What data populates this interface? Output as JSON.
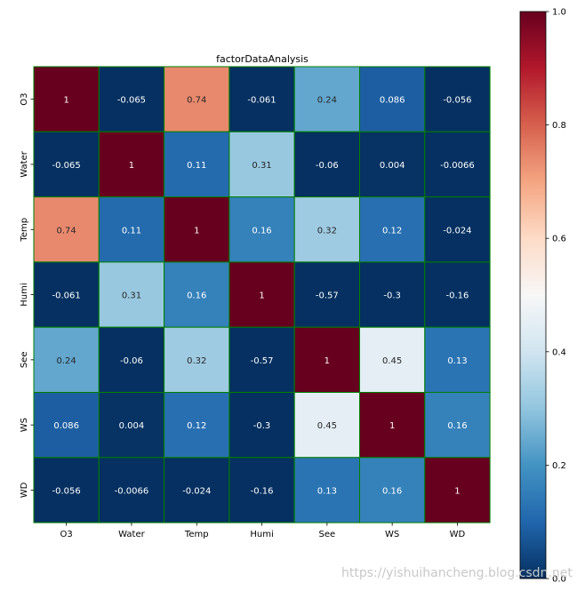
{
  "chart_data": {
    "type": "heatmap",
    "title": "factorDataAnalysis",
    "xlabel": "",
    "ylabel": "",
    "row_labels": [
      "O3",
      "Water",
      "Temp",
      "Humi",
      "See",
      "WS",
      "WD"
    ],
    "col_labels": [
      "O3",
      "Water",
      "Temp",
      "Humi",
      "See",
      "WS",
      "WD"
    ],
    "values": [
      [
        1,
        -0.065,
        0.74,
        -0.061,
        0.24,
        0.086,
        -0.056
      ],
      [
        -0.065,
        1,
        0.11,
        0.31,
        -0.06,
        0.004,
        -0.0066
      ],
      [
        0.74,
        0.11,
        1,
        0.16,
        0.32,
        0.12,
        -0.024
      ],
      [
        -0.061,
        0.31,
        0.16,
        1,
        -0.57,
        -0.3,
        -0.16
      ],
      [
        0.24,
        -0.06,
        0.32,
        -0.57,
        1,
        0.45,
        0.13
      ],
      [
        0.086,
        0.004,
        0.12,
        -0.3,
        0.45,
        1,
        0.16
      ],
      [
        -0.056,
        -0.0066,
        -0.024,
        -0.16,
        0.13,
        0.16,
        1
      ]
    ],
    "annotations": [
      [
        "1",
        "-0.065",
        "0.74",
        "-0.061",
        "0.24",
        "0.086",
        "-0.056"
      ],
      [
        "-0.065",
        "1",
        "0.11",
        "0.31",
        "-0.06",
        "0.004",
        "-0.0066"
      ],
      [
        "0.74",
        "0.11",
        "1",
        "0.16",
        "0.32",
        "0.12",
        "-0.024"
      ],
      [
        "-0.061",
        "0.31",
        "0.16",
        "1",
        "-0.57",
        "-0.3",
        "-0.16"
      ],
      [
        "0.24",
        "-0.06",
        "0.32",
        "-0.57",
        "1",
        "0.45",
        "0.13"
      ],
      [
        "0.086",
        "0.004",
        "0.12",
        "-0.3",
        "0.45",
        "1",
        "0.16"
      ],
      [
        "-0.056",
        "-0.0066",
        "-0.024",
        "-0.16",
        "0.13",
        "0.16",
        "1"
      ]
    ],
    "colormap": "RdBu_r",
    "vmin": 0,
    "vmax": 1,
    "cell_border_color": "#008000",
    "colorbar_ticks": [
      0.0,
      0.2,
      0.4,
      0.6,
      0.8,
      1.0
    ],
    "colorbar_tick_labels": [
      "0.0",
      "0.2",
      "0.4",
      "0.6",
      "0.8",
      "1.0"
    ],
    "colorbar_position": "right"
  },
  "watermark": "https://yishuihancheng.blog.csdn.net"
}
